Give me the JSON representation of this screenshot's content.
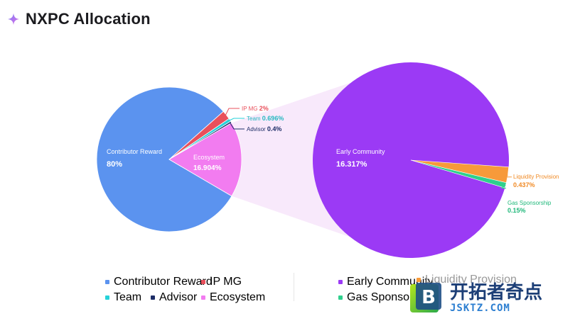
{
  "page": {
    "title": "NXPC Allocation",
    "title_icon": "sparkle-icon"
  },
  "chart_data": [
    {
      "type": "pie",
      "slices": [
        {
          "label": "Contributor Reward",
          "value": 80,
          "display": "80%",
          "color": "#5b93ef"
        },
        {
          "label": "IP MG",
          "value": 2,
          "display": "2%",
          "color": "#e9505c"
        },
        {
          "label": "Team",
          "value": 0.696,
          "display": "0.696%",
          "color": "#26d2d9"
        },
        {
          "label": "Advisor",
          "value": 0.4,
          "display": "0.4%",
          "color": "#1d2d67"
        },
        {
          "label": "Ecosystem",
          "value": 16.904,
          "display": "16.904%",
          "color": "#f27cf0"
        }
      ]
    },
    {
      "type": "pie",
      "slices": [
        {
          "label": "Early Community",
          "value": 16.317,
          "display": "16.317%",
          "color": "#9b3af5"
        },
        {
          "label": "Liquidity Provision",
          "value": 0.437,
          "display": "0.437%",
          "color": "#f79a3a"
        },
        {
          "label": "Gas Sponsorship",
          "value": 0.15,
          "display": "0.15%",
          "color": "#2fd08d"
        }
      ]
    }
  ],
  "legend": {
    "left": [
      "Contributor Reward",
      "IP MG",
      "Team",
      "Advisor",
      "Ecosystem"
    ],
    "right": [
      "Early Community",
      "Liquidity Provision",
      "Gas Sponsorship"
    ]
  },
  "watermark": {
    "cn": "开拓者奇点",
    "en": "JSKTZ.COM",
    "logo_letter": "B"
  }
}
